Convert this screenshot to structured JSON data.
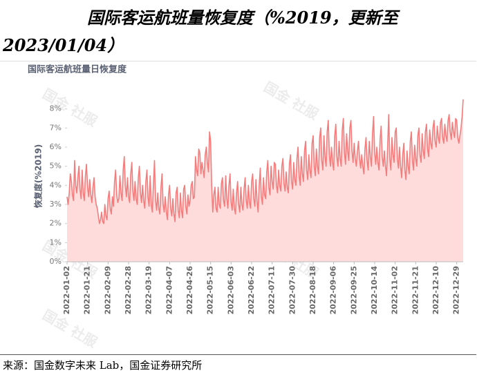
{
  "chart_data": {
    "type": "area",
    "title": "国际客运航班量恢复度（%2019，更新至2023/01/04）",
    "chart_title": "国际客运航班量日恢复度",
    "y_label": "恢复度(%2019)",
    "source": "来源：国金数字未来 Lab，国金证券研究所",
    "watermark": "国金 社服",
    "color": "#f47c7c",
    "fill": "#ffdcdc",
    "ylim": [
      0,
      9
    ],
    "yticks": [
      {
        "value": 0,
        "label": "0%"
      },
      {
        "value": 1,
        "label": "1%"
      },
      {
        "value": 2,
        "label": "2%"
      },
      {
        "value": 3,
        "label": "3%"
      },
      {
        "value": 4,
        "label": "4%"
      },
      {
        "value": 5,
        "label": "5%"
      },
      {
        "value": 6,
        "label": "6%"
      },
      {
        "value": 7,
        "label": "7%"
      },
      {
        "value": 8,
        "label": "8%"
      }
    ],
    "categories": [
      "2022-01-02",
      null,
      null,
      null,
      null,
      null,
      null,
      null,
      null,
      null,
      null,
      null,
      null,
      null,
      null,
      null,
      null,
      null,
      null,
      "2022-01-21",
      null,
      null,
      null,
      null,
      null,
      null,
      null,
      null,
      null,
      null,
      null,
      null,
      null,
      null,
      null,
      null,
      null,
      null,
      "2022-02-09",
      null,
      null,
      null,
      null,
      null,
      null,
      null,
      null,
      null,
      null,
      null,
      null,
      null,
      null,
      null,
      null,
      null,
      null,
      "2022-02-28",
      null,
      null,
      null,
      null,
      null,
      null,
      null,
      null,
      null,
      null,
      null,
      null,
      null,
      null,
      null,
      null,
      null,
      null,
      "2022-03-19",
      null,
      null,
      null,
      null,
      null,
      null,
      null,
      null,
      null,
      null,
      null,
      null,
      null,
      null,
      null,
      null,
      null,
      null,
      "2022-04-07",
      null,
      null,
      null,
      null,
      null,
      null,
      null,
      null,
      null,
      null,
      null,
      null,
      null,
      null,
      null,
      null,
      null,
      null,
      "2022-04-26",
      null,
      null,
      null,
      null,
      null,
      null,
      null,
      null,
      null,
      null,
      null,
      null,
      null,
      null,
      null,
      null,
      null,
      null,
      "2022-05-15",
      null,
      null,
      null,
      null,
      null,
      null,
      null,
      null,
      null,
      null,
      null,
      null,
      null,
      null,
      null,
      null,
      null,
      null,
      "2022-06-03",
      null,
      null,
      null,
      null,
      null,
      null,
      null,
      null,
      null,
      null,
      null,
      null,
      null,
      null,
      null,
      null,
      null,
      null,
      "2022-06-22",
      null,
      null,
      null,
      null,
      null,
      null,
      null,
      null,
      null,
      null,
      null,
      null,
      null,
      null,
      null,
      null,
      null,
      null,
      "2022-07-11",
      null,
      null,
      null,
      null,
      null,
      null,
      null,
      null,
      null,
      null,
      null,
      null,
      null,
      null,
      null,
      null,
      null,
      null,
      "2022-07-30",
      null,
      null,
      null,
      null,
      null,
      null,
      null,
      null,
      null,
      null,
      null,
      null,
      null,
      null,
      null,
      null,
      null,
      null,
      "2022-08-18",
      null,
      null,
      null,
      null,
      null,
      null,
      null,
      null,
      null,
      null,
      null,
      null,
      null,
      null,
      null,
      null,
      null,
      null,
      "2022-09-06",
      null,
      null,
      null,
      null,
      null,
      null,
      null,
      null,
      null,
      null,
      null,
      null,
      null,
      null,
      null,
      null,
      null,
      null,
      "2022-09-25",
      null,
      null,
      null,
      null,
      null,
      null,
      null,
      null,
      null,
      null,
      null,
      null,
      null,
      null,
      null,
      null,
      null,
      null,
      "2022-10-14",
      null,
      null,
      null,
      null,
      null,
      null,
      null,
      null,
      null,
      null,
      null,
      null,
      null,
      null,
      null,
      null,
      null,
      null,
      "2022-11-02",
      null,
      null,
      null,
      null,
      null,
      null,
      null,
      null,
      null,
      null,
      null,
      null,
      null,
      null,
      null,
      null,
      null,
      null,
      "2022-11-21",
      null,
      null,
      null,
      null,
      null,
      null,
      null,
      null,
      null,
      null,
      null,
      null,
      null,
      null,
      null,
      null,
      null,
      null,
      "2022-12-10",
      null,
      null,
      null,
      null,
      null,
      null,
      null,
      null,
      null,
      null,
      null,
      null,
      null,
      null,
      null,
      null,
      null,
      null,
      "2022-12-29",
      null,
      null,
      null,
      null,
      null,
      null
    ],
    "values": [
      3.4,
      3.0,
      3.6,
      4.6,
      4.2,
      3.5,
      3.2,
      5.3,
      4.0,
      3.6,
      4.4,
      5.0,
      3.8,
      3.3,
      4.8,
      3.6,
      3.2,
      4.5,
      5.1,
      3.9,
      3.4,
      4.3,
      3.5,
      3.1,
      3.9,
      4.4,
      3.4,
      3.0,
      2.8,
      2.4,
      2.0,
      2.2,
      2.6,
      2.1,
      2.0,
      3.0,
      2.4,
      2.2,
      3.3,
      3.7,
      2.8,
      2.5,
      3.4,
      2.9,
      4.2,
      4.8,
      3.5,
      3.1,
      3.3,
      4.5,
      3.6,
      3.2,
      4.8,
      5.5,
      4.0,
      3.4,
      4.4,
      3.4,
      3.1,
      4.6,
      5.2,
      3.7,
      3.2,
      4.2,
      3.3,
      3.0,
      4.4,
      5.0,
      3.6,
      3.1,
      4.0,
      3.2,
      2.8,
      4.2,
      4.8,
      3.4,
      2.9,
      4.5,
      3.0,
      2.6,
      4.0,
      5.3,
      3.2,
      2.7,
      3.6,
      2.8,
      2.5,
      3.9,
      4.6,
      3.0,
      2.6,
      3.4,
      2.6,
      2.2,
      3.5,
      4.0,
      2.8,
      2.4,
      3.3,
      2.5,
      2.1,
      3.6,
      3.9,
      2.7,
      2.3,
      3.6,
      2.7,
      2.3,
      3.8,
      4.0,
      2.9,
      2.5,
      3.5,
      2.9,
      3.2,
      4.0,
      4.2,
      3.3,
      3.4,
      5.5,
      4.8,
      4.5,
      5.9,
      5.7,
      4.6,
      5.2,
      4.8,
      4.4,
      5.6,
      6.0,
      5.2,
      4.7,
      6.8,
      6.3,
      4.0,
      2.6,
      3.5,
      3.9,
      2.8,
      2.6,
      3.9,
      3.0,
      2.8,
      4.1,
      4.4,
      3.2,
      2.9,
      4.5,
      3.3,
      2.8,
      4.0,
      4.6,
      3.1,
      2.7,
      3.8,
      2.8,
      2.5,
      3.6,
      4.2,
      3.0,
      2.6,
      3.9,
      3.0,
      2.7,
      3.8,
      4.4,
      3.2,
      2.8,
      4.0,
      3.1,
      2.8,
      4.2,
      4.6,
      3.3,
      2.9,
      4.3,
      3.2,
      2.6,
      4.0,
      4.9,
      3.4,
      3.0,
      4.4,
      3.5,
      3.3,
      4.7,
      5.3,
      3.9,
      3.5,
      5.0,
      4.2,
      3.8,
      5.2,
      5.1,
      4.0,
      3.6,
      4.8,
      4.0,
      3.7,
      5.0,
      5.4,
      4.1,
      3.7,
      4.7,
      3.9,
      3.6,
      5.1,
      5.6,
      4.2,
      3.8,
      5.2,
      4.3,
      4.0,
      5.4,
      6.0,
      4.5,
      4.0,
      5.5,
      4.6,
      4.2,
      5.8,
      6.3,
      4.8,
      4.3,
      5.6,
      4.8,
      4.4,
      6.2,
      6.6,
      5.0,
      4.5,
      5.9,
      5.0,
      4.6,
      6.5,
      7.0,
      5.3,
      4.8,
      6.6,
      5.5,
      5.0,
      6.8,
      7.4,
      5.6,
      5.0,
      6.0,
      5.2,
      4.8,
      6.6,
      7.2,
      5.5,
      5.0,
      6.3,
      5.4,
      5.0,
      6.9,
      7.5,
      5.7,
      5.1,
      6.7,
      5.8,
      5.3,
      7.0,
      7.4,
      5.8,
      5.2,
      6.2,
      5.4,
      5.0,
      5.8,
      6.3,
      5.4,
      4.9,
      5.6,
      5.0,
      4.6,
      5.9,
      6.5,
      5.3,
      4.8,
      6.3,
      5.5,
      5.0,
      6.7,
      7.6,
      5.7,
      5.1,
      6.0,
      5.2,
      4.8,
      6.4,
      7.1,
      5.5,
      5.0,
      5.8,
      5.0,
      4.5,
      6.0,
      7.7,
      5.4,
      4.8,
      6.5,
      5.6,
      5.2,
      6.8,
      7.0,
      5.4,
      4.9,
      6.0,
      5.0,
      4.4,
      5.6,
      6.2,
      4.8,
      4.3,
      5.8,
      5.0,
      4.6,
      6.3,
      6.8,
      5.3,
      4.8,
      6.1,
      5.4,
      5.0,
      6.6,
      7.0,
      5.6,
      5.2,
      6.7,
      5.8,
      5.4,
      6.8,
      7.2,
      5.9,
      5.5,
      6.9,
      6.2,
      5.9,
      7.0,
      7.4,
      6.3,
      6.0,
      7.1,
      6.5,
      6.2,
      7.3,
      7.5,
      6.5,
      6.2,
      7.2,
      6.6,
      6.3,
      7.4,
      7.7,
      6.8,
      6.4,
      7.3,
      6.8,
      6.5,
      7.5,
      7.4,
      6.5,
      6.2,
      6.6,
      7.0,
      7.6,
      8.5
    ]
  }
}
